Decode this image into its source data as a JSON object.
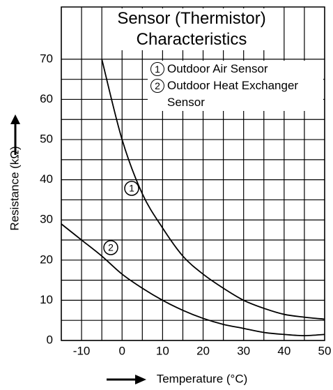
{
  "chart_data": {
    "type": "line",
    "title": "Sensor (Thermistor) Characteristics",
    "x_label": "Temperature (°C)",
    "y_label": "Resistance (kΩ)",
    "x": [
      -15,
      -10,
      -5,
      0,
      5,
      10,
      15,
      20,
      25,
      30,
      35,
      40,
      45,
      50
    ],
    "series": [
      {
        "name": "Outdoor Air Sensor",
        "label": "1",
        "color": "#000000",
        "values": [
          null,
          null,
          70,
          50,
          36.5,
          28,
          21,
          16.5,
          13,
          10,
          8,
          6.5,
          5.8,
          5.3
        ]
      },
      {
        "name": "Outdoor Heat Exchanger Sensor",
        "label": "2",
        "color": "#000000",
        "values": [
          29,
          25,
          21,
          16.5,
          13,
          10,
          7.5,
          5.5,
          4,
          3,
          2,
          1.5,
          1.2,
          1.5
        ]
      }
    ],
    "xlim": [
      -15,
      50
    ],
    "ylim": [
      0,
      83
    ],
    "xticks": [
      -10,
      0,
      10,
      20,
      30,
      40,
      50
    ],
    "yticks": [
      0,
      10,
      20,
      30,
      40,
      50,
      60,
      70
    ],
    "grid": true
  }
}
